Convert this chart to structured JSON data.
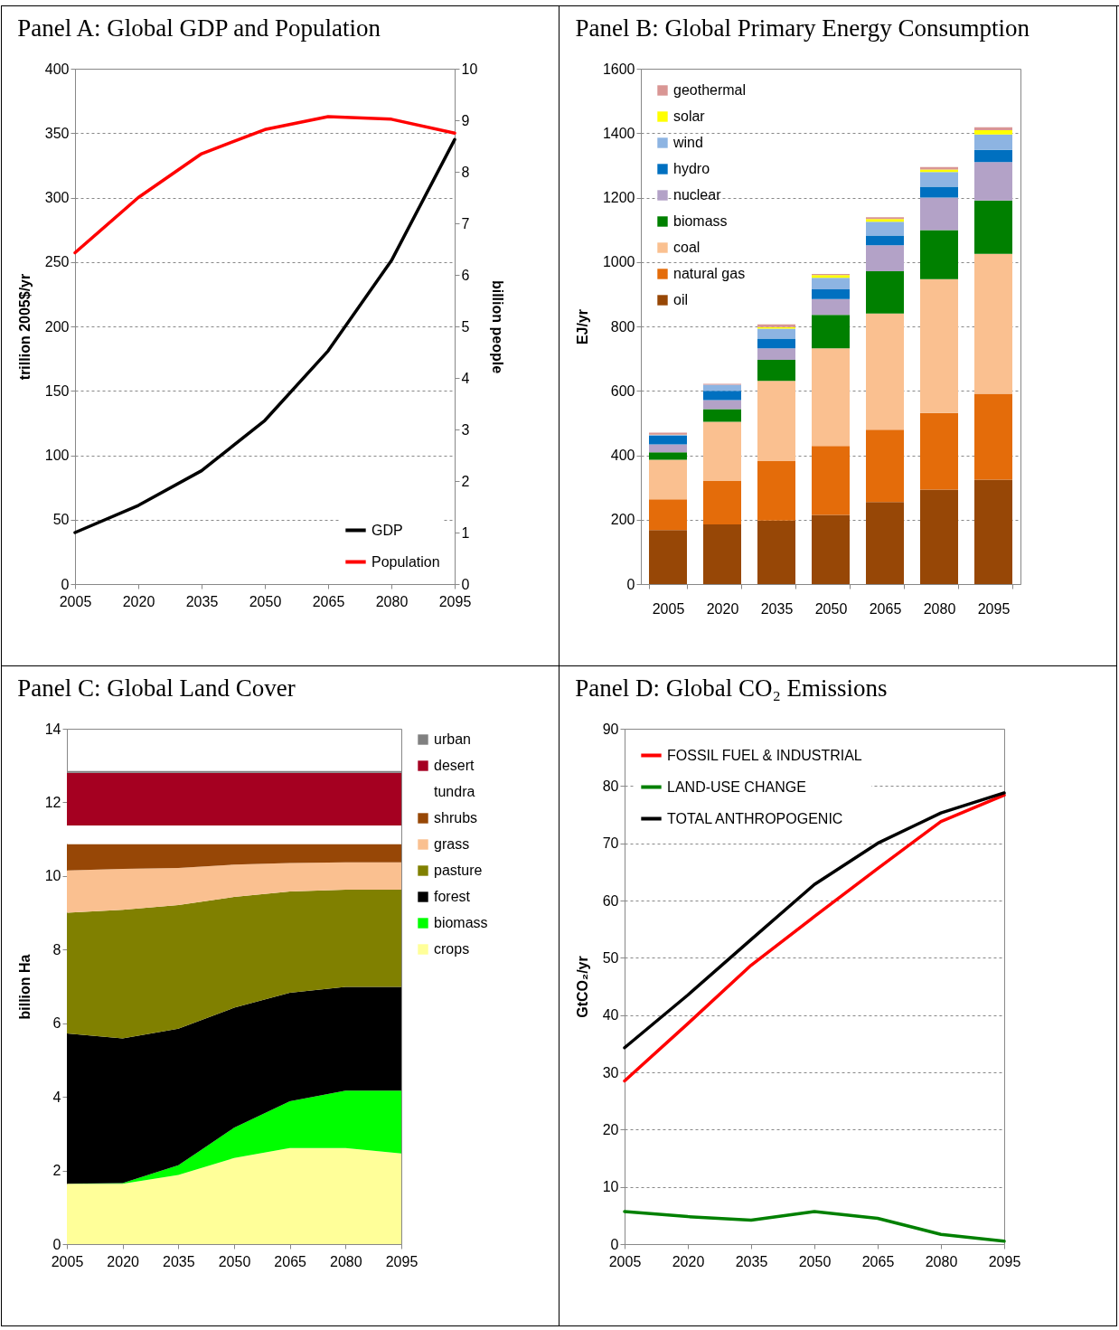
{
  "chart_data": [
    {
      "type": "line",
      "title": "Panel A: Global GDP and Population",
      "categories": [
        "2005",
        "2020",
        "2035",
        "2050",
        "2065",
        "2080",
        "2095"
      ],
      "ylabel": "trillion 2005$/yr",
      "y2label": "billion people",
      "ylim": [
        0,
        400
      ],
      "yticks": [
        0,
        50,
        100,
        150,
        200,
        250,
        300,
        350,
        400
      ],
      "y2lim": [
        0,
        10
      ],
      "y2ticks": [
        0,
        1,
        2,
        3,
        4,
        5,
        6,
        7,
        8,
        9,
        10
      ],
      "grid": "y",
      "legend": "bottom right",
      "line_style": "solid",
      "series": [
        {
          "name": "GDP",
          "color": "#000000",
          "values": [
            40,
            61,
            88,
            127,
            181,
            251,
            345
          ]
        },
        {
          "name": "Population",
          "color": "#ff0000",
          "axis": "y2",
          "values": [
            6.43,
            7.5,
            8.35,
            8.82,
            9.07,
            9.02,
            8.75
          ]
        }
      ]
    },
    {
      "type": "bar",
      "title": "Panel B: Global Primary Energy Consumption",
      "categories": [
        "2005",
        "2020",
        "2035",
        "2050",
        "2065",
        "2080",
        "2095"
      ],
      "ylabel": "EJ/yr",
      "ylim": [
        0,
        1600
      ],
      "yticks": [
        0,
        200,
        400,
        600,
        800,
        1000,
        1200,
        1400,
        1600
      ],
      "grid": "y",
      "legend": "top left",
      "stacked": true,
      "series": [
        {
          "name": "oil",
          "color": "#974706",
          "values": [
            168,
            185,
            197,
            215,
            255,
            293,
            324
          ]
        },
        {
          "name": "natural gas",
          "color": "#e46c0a",
          "values": [
            95,
            135,
            185,
            214,
            224,
            238,
            267
          ]
        },
        {
          "name": "coal",
          "color": "#fac090",
          "values": [
            123,
            184,
            249,
            303,
            361,
            416,
            434
          ]
        },
        {
          "name": "biomass",
          "color": "#008000",
          "values": [
            23,
            39,
            65,
            104,
            131,
            152,
            166
          ]
        },
        {
          "name": "nuclear",
          "color": "#b3a2c7",
          "values": [
            25,
            28,
            36,
            49,
            81,
            101,
            119
          ]
        },
        {
          "name": "hydro",
          "color": "#0070c0",
          "values": [
            27,
            29,
            30,
            30,
            30,
            34,
            38
          ]
        },
        {
          "name": "wind",
          "color": "#8db4e2",
          "values": [
            2,
            19,
            31,
            36,
            43,
            45,
            48
          ]
        },
        {
          "name": "solar",
          "color": "#ffff00",
          "values": [
            1,
            null,
            5,
            8,
            8,
            8,
            13
          ]
        },
        {
          "name": "geothermal",
          "color": "#d99694",
          "values": [
            6,
            3,
            8,
            4,
            6,
            8,
            9
          ]
        }
      ]
    },
    {
      "type": "area",
      "title": "Panel C: Global Land Cover",
      "categories": [
        "2005",
        "2020",
        "2035",
        "2050",
        "2065",
        "2080",
        "2095"
      ],
      "ylabel": "billion Ha",
      "ylim": [
        0,
        14
      ],
      "yticks": [
        0,
        2,
        4,
        6,
        8,
        10,
        12,
        14
      ],
      "legend": "right",
      "stacked": true,
      "series": [
        {
          "name": "crops",
          "color": "#ffff99",
          "values": [
            1.64,
            1.64,
            1.88,
            2.34,
            2.61,
            2.61,
            2.46
          ]
        },
        {
          "name": "biomass",
          "color": "#00ff00",
          "values": [
            0,
            0.02,
            0.26,
            0.82,
            1.27,
            1.56,
            1.71
          ]
        },
        {
          "name": "forest",
          "color": "#000000",
          "values": [
            4.08,
            3.93,
            3.71,
            3.26,
            2.95,
            2.82,
            2.82
          ]
        },
        {
          "name": "pasture",
          "color": "#808000",
          "values": [
            3.28,
            3.49,
            3.36,
            3.01,
            2.75,
            2.64,
            2.64
          ]
        },
        {
          "name": "grass",
          "color": "#fac090",
          "values": [
            1.15,
            1.11,
            1.01,
            0.88,
            0.77,
            0.74,
            0.74
          ]
        },
        {
          "name": "shrubs",
          "color": "#974706",
          "values": [
            0.72,
            0.68,
            0.65,
            0.56,
            0.52,
            0.5,
            0.5
          ]
        },
        {
          "name": "tundra",
          "color": "#ffffff",
          "values": [
            0.5,
            0.5,
            0.5,
            0.5,
            0.5,
            0.5,
            0.5
          ]
        },
        {
          "name": "desert",
          "color": "#a50021",
          "values": [
            1.43,
            1.43,
            1.43,
            1.43,
            1.43,
            1.43,
            1.43
          ]
        },
        {
          "name": "urban",
          "color": "#808080",
          "values": [
            0.05,
            0.05,
            0.05,
            0.05,
            0.05,
            0.05,
            0.05
          ]
        }
      ]
    },
    {
      "type": "line",
      "title": "Panel D: Global CO₂ Emissions",
      "categories": [
        "2005",
        "2020",
        "2035",
        "2050",
        "2065",
        "2080",
        "2095"
      ],
      "ylabel": "GtCO₂/yr",
      "ylim": [
        0,
        90
      ],
      "yticks": [
        0,
        10,
        20,
        30,
        40,
        50,
        60,
        70,
        80,
        90
      ],
      "grid": "y",
      "legend": "top left",
      "line_style": "solid",
      "series": [
        {
          "name": "FOSSIL FUEL  & INDUSTRIAL",
          "color": "#ff0000",
          "values": [
            28.5,
            38.5,
            48.7,
            57.2,
            65.6,
            73.8,
            78.4
          ]
        },
        {
          "name": "LAND-USE CHANGE",
          "color": "#008000",
          "values": [
            5.7,
            4.8,
            4.2,
            5.7,
            4.5,
            1.7,
            0.5
          ]
        },
        {
          "name": "TOTAL ANTHROPOGENIC",
          "color": "#000000",
          "values": [
            34.3,
            43.5,
            53.2,
            62.8,
            70.0,
            75.3,
            78.8
          ]
        }
      ]
    }
  ]
}
